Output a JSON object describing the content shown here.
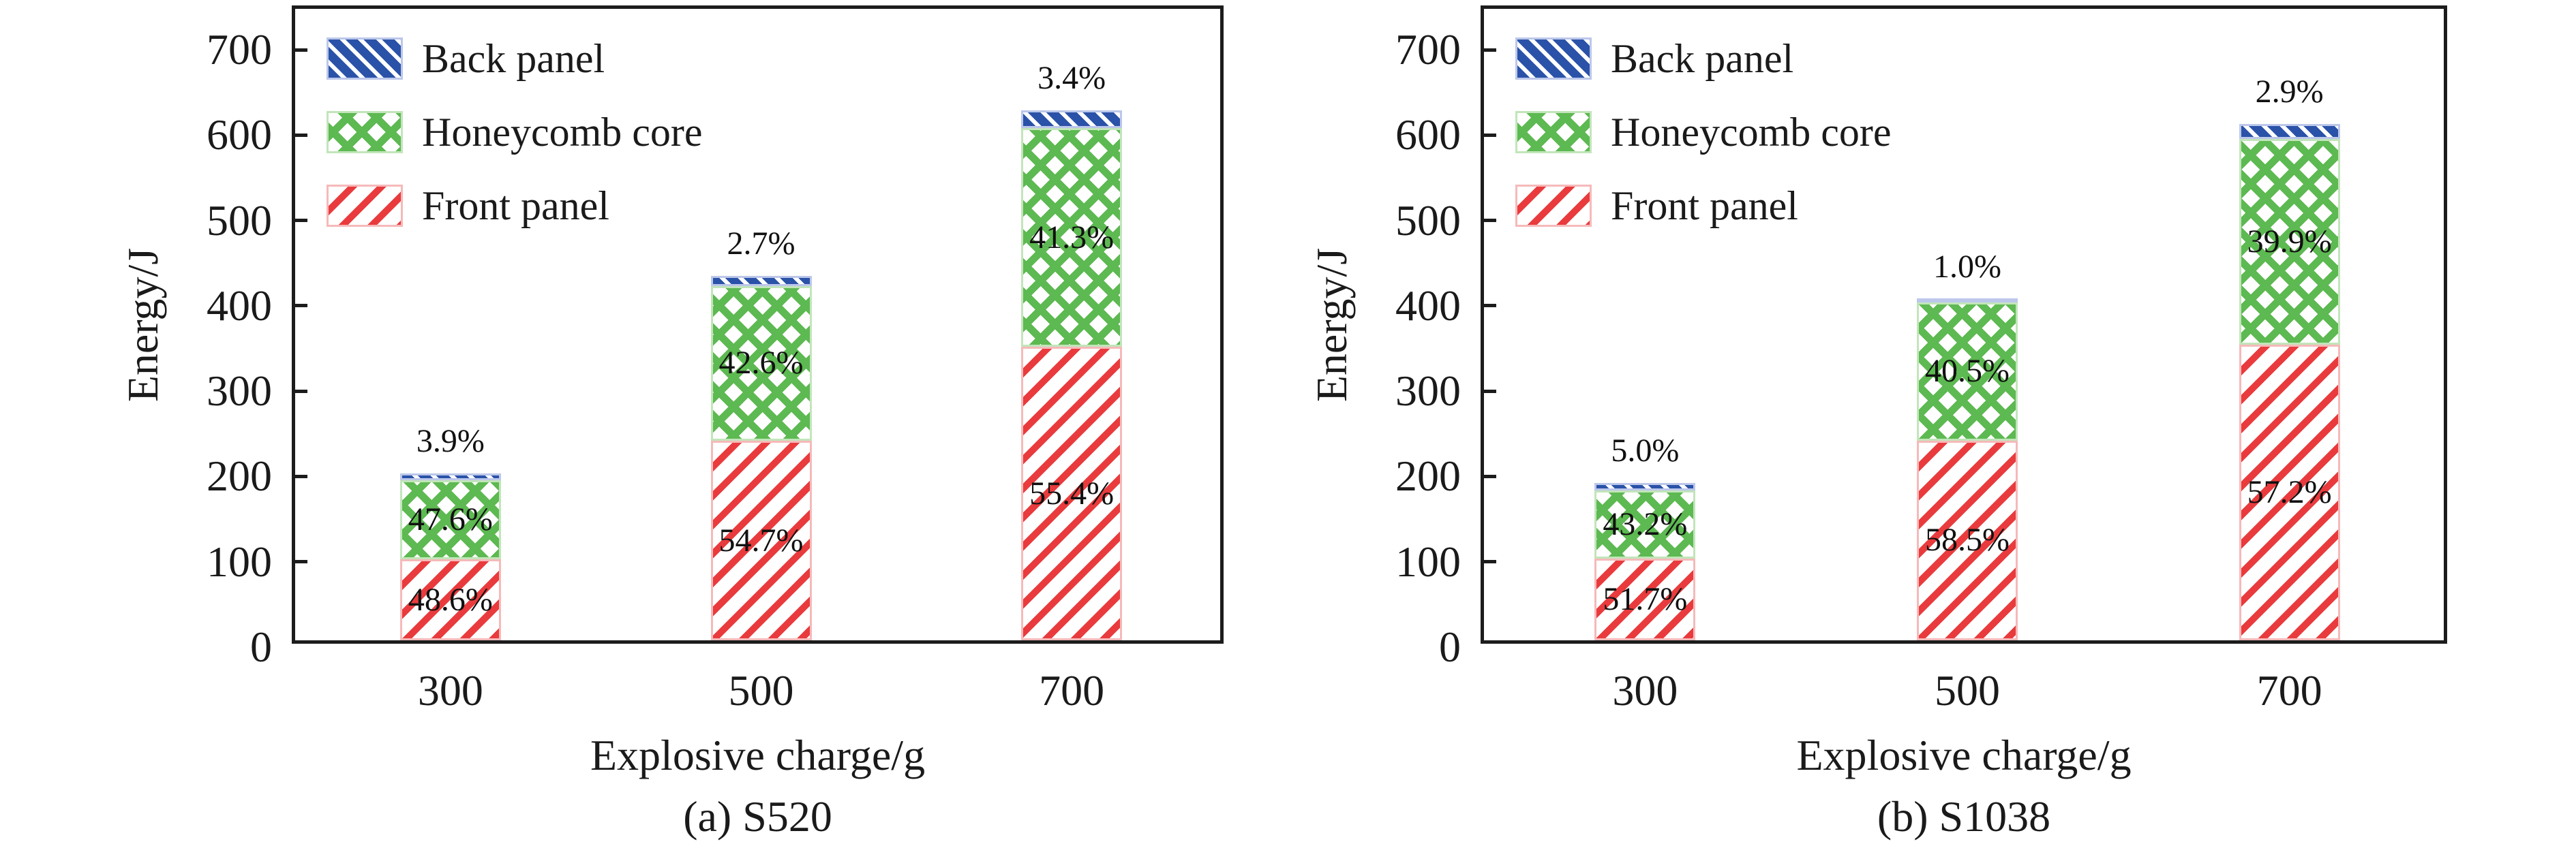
{
  "figure": {
    "background": "#ffffff",
    "text_color": "#1a1a1a"
  },
  "colors": {
    "front_panel_red": "#e93b3d",
    "honeycomb_green": "#5db951",
    "back_panel_blue": "#2a52a8",
    "axis_black": "#1c1c1c"
  },
  "chart_data": [
    {
      "type": "bar",
      "subtype": "stacked",
      "caption": "(a) S520",
      "xlabel": "Explosive charge/g",
      "ylabel": "Energy/J",
      "categories": [
        "300",
        "500",
        "700"
      ],
      "ylim": [
        0,
        748
      ],
      "yticks": [
        0,
        100,
        200,
        300,
        400,
        500,
        600,
        700
      ],
      "legend": [
        "Back panel",
        "Honeycomb core",
        "Front panel"
      ],
      "legend_position": "upper-left",
      "grid": false,
      "totals_J": [
        195,
        427,
        621
      ],
      "series": [
        {
          "name": "Front panel",
          "pattern": "red-diagonal",
          "values": [
            94.8,
            233.6,
            343.9
          ],
          "labels": [
            "48.6%",
            "54.7%",
            "55.4%"
          ],
          "label_position": "inside"
        },
        {
          "name": "Honeycomb core",
          "pattern": "green-crosshatch",
          "values": [
            92.8,
            181.9,
            256.4
          ],
          "labels": [
            "47.6%",
            "42.6%",
            "41.3%"
          ],
          "label_position": "inside"
        },
        {
          "name": "Back panel",
          "pattern": "blue-diagonal",
          "values": [
            7.6,
            11.5,
            21.1
          ],
          "labels": [
            "3.9%",
            "2.7%",
            "3.4%"
          ],
          "label_position": "above"
        }
      ]
    },
    {
      "type": "bar",
      "subtype": "stacked",
      "caption": "(b) S1038",
      "xlabel": "Explosive charge/g",
      "ylabel": "Energy/J",
      "categories": [
        "300",
        "500",
        "700"
      ],
      "ylim": [
        0,
        748
      ],
      "yticks": [
        0,
        100,
        200,
        300,
        400,
        500,
        600,
        700
      ],
      "legend": [
        "Back panel",
        "Honeycomb core",
        "Front panel"
      ],
      "legend_position": "upper-left",
      "grid": false,
      "totals_J": [
        185,
        400,
        605
      ],
      "series": [
        {
          "name": "Front panel",
          "pattern": "red-diagonal",
          "values": [
            95.6,
            234.0,
            346.1
          ],
          "labels": [
            "51.7%",
            "58.5%",
            "57.2%"
          ],
          "label_position": "inside"
        },
        {
          "name": "Honeycomb core",
          "pattern": "green-crosshatch",
          "values": [
            79.9,
            162.0,
            241.4
          ],
          "labels": [
            "43.2%",
            "40.5%",
            "39.9%"
          ],
          "label_position": "inside"
        },
        {
          "name": "Back panel",
          "pattern": "blue-diagonal",
          "values": [
            9.3,
            4.0,
            17.5
          ],
          "labels": [
            "5.0%",
            "1.0%",
            "2.9%"
          ],
          "label_position": "above"
        }
      ]
    }
  ]
}
